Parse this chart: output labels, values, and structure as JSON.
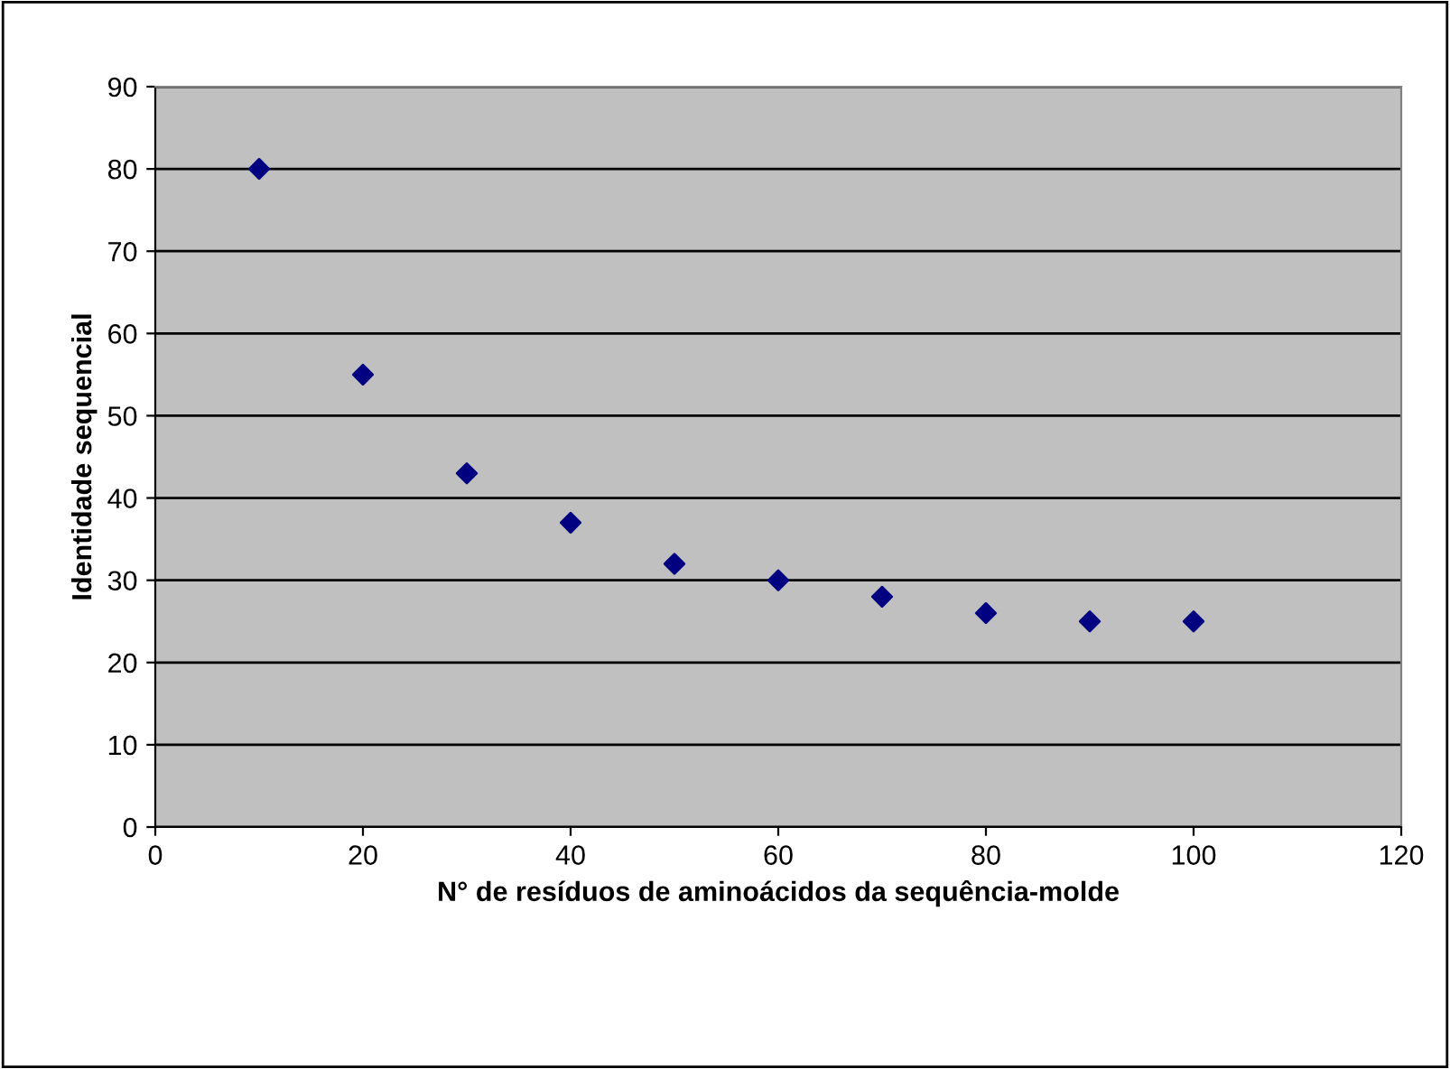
{
  "chart_data": {
    "type": "scatter",
    "xlabel": "N° de resíduos de aminoácidos da sequência-molde",
    "ylabel": "Identidade sequencial",
    "x": [
      10,
      20,
      30,
      40,
      50,
      60,
      70,
      80,
      90,
      100
    ],
    "series": [
      {
        "color": "#000080",
        "values": [
          80,
          55,
          43,
          37,
          32,
          30,
          28,
          26,
          25,
          25
        ]
      }
    ],
    "xlim": [
      0,
      120
    ],
    "xticks": [
      0,
      20,
      40,
      60,
      80,
      100,
      120
    ],
    "ylim": [
      0,
      90
    ],
    "yticks": [
      0,
      10,
      20,
      30,
      40,
      50,
      60,
      70,
      80,
      90
    ],
    "grid": "y",
    "marker": "diamond",
    "legend": false
  }
}
